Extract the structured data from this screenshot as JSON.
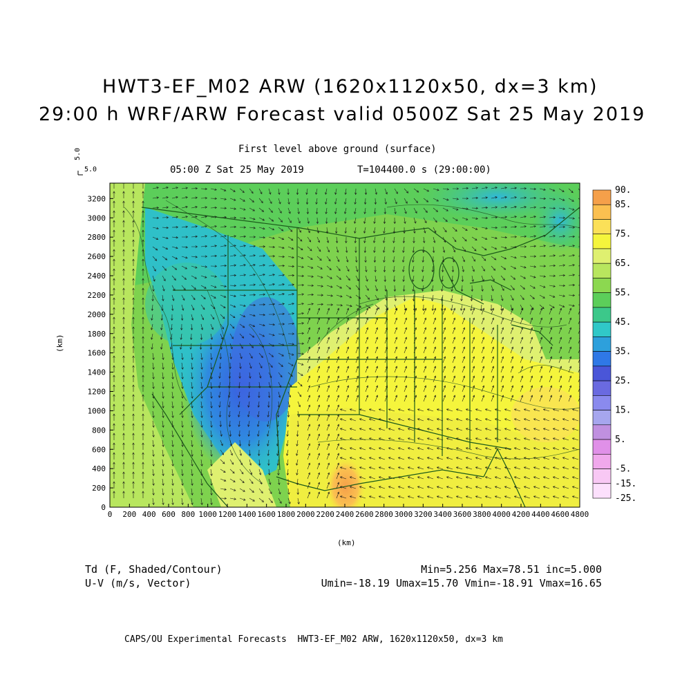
{
  "header": {
    "title_line1": "HWT3-EF_M02 ARW (1620x1120x50, dx=3 km)",
    "title_line2": "29:00 h WRF/ARW Forecast valid 0500Z Sat 25 May 2019",
    "level": "First level above ground (surface)",
    "time_left": "05:00 Z Sat 25 May 2019",
    "time_right": "T=104400.0 s (29:00:00)",
    "vector_scale_top": "5.0",
    "vector_scale_right": "5.0"
  },
  "axes": {
    "xlabel": "(km)",
    "ylabel": "(km)",
    "x_ticks": [
      "0",
      "200",
      "400",
      "600",
      "800",
      "1000",
      "1200",
      "1400",
      "1600",
      "1800",
      "2000",
      "2200",
      "2400",
      "2600",
      "2800",
      "3000",
      "3200",
      "3400",
      "3600",
      "3800",
      "4000",
      "4200",
      "4400",
      "4600",
      "4800"
    ],
    "y_ticks": [
      "0",
      "200",
      "400",
      "600",
      "800",
      "1000",
      "1200",
      "1400",
      "1600",
      "1800",
      "2000",
      "2200",
      "2400",
      "2600",
      "2800",
      "3000",
      "3200"
    ]
  },
  "colorbar": {
    "labels": [
      "90.",
      "85.",
      "75.",
      "65.",
      "55.",
      "45.",
      "35.",
      "25.",
      "15.",
      "5.",
      "-5.",
      "-15.",
      "-25."
    ],
    "colors": [
      "#f5a04a",
      "#fbc050",
      "#fbe058",
      "#f5f53c",
      "#dff070",
      "#b8e65e",
      "#8cd850",
      "#5cce5a",
      "#3cc88a",
      "#30c8c8",
      "#2da0dc",
      "#2f78e6",
      "#4a56d8",
      "#6a6ae0",
      "#8a8aee",
      "#a6a6ee",
      "#c090e0",
      "#e090e8",
      "#f0a8ec",
      "#f8c8f4",
      "#fce0fc"
    ]
  },
  "footer_left": {
    "line1": "Td (F, Shaded/Contour)",
    "line2": "U-V (m/s, Vector)"
  },
  "footer_right": {
    "line1": "Min=5.256 Max=78.51 inc=5.000",
    "line2": "Umin=-18.19 Umax=15.70 Vmin=-18.91 Vmax=16.65"
  },
  "credit": "CAPS/OU Experimental Forecasts  HWT3-EF_M02 ARW, 1620x1120x50, dx=3 km"
}
